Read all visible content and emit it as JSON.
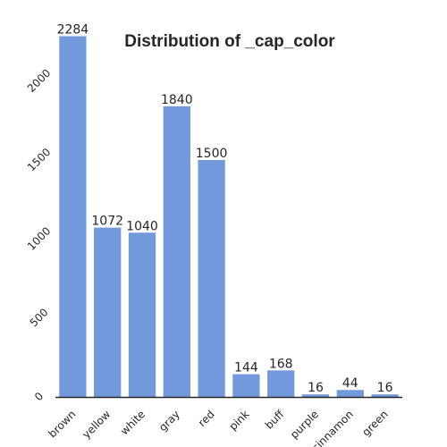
{
  "chart_data": {
    "type": "bar",
    "title": "Distribution of _cap_color",
    "xlabel": "",
    "ylabel": "",
    "categories": [
      "brown",
      "yellow",
      "white",
      "gray",
      "red",
      "pink",
      "buff",
      "purple",
      "cinnamon",
      "green"
    ],
    "values": [
      2284,
      1072,
      1040,
      1840,
      1500,
      144,
      168,
      16,
      44,
      16
    ],
    "ylim": [
      0,
      2400
    ],
    "yticks": [
      0,
      500,
      1000,
      1500,
      2000
    ],
    "grid": false,
    "legend": "none",
    "bar_color": "#7399dd",
    "axis_color": "#262626",
    "text_color": "#262626"
  }
}
